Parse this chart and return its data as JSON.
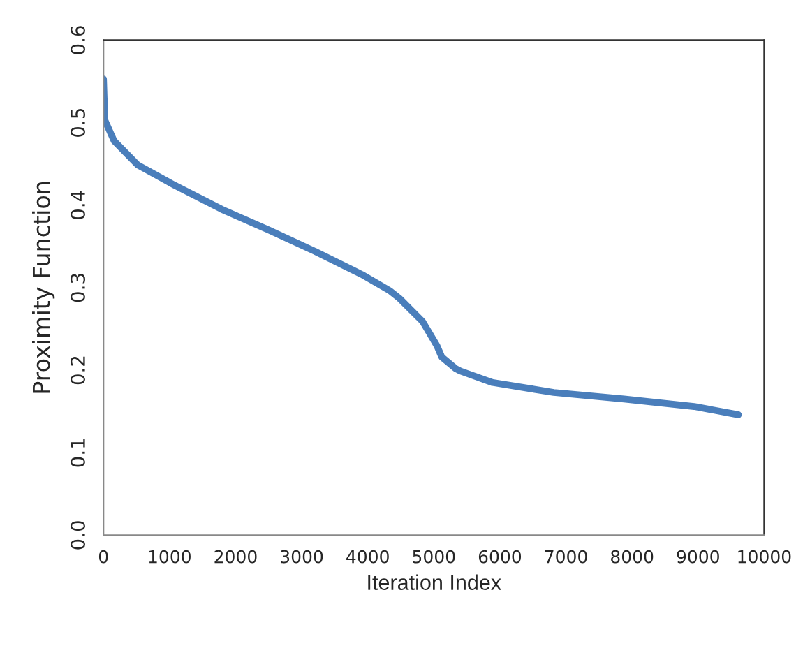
{
  "chart_data": {
    "type": "line",
    "xlabel": "Iteration Index",
    "ylabel": "Proximity Function",
    "series": [
      {
        "color": "#4a7ebb",
        "x": [
          0,
          20,
          160,
          515,
          1080,
          1790,
          2500,
          3200,
          3910,
          4340,
          4480,
          4830,
          5045,
          5120,
          5330,
          5400,
          5890,
          6815,
          7880,
          8940,
          9610
        ],
        "values": [
          0.553,
          0.503,
          0.478,
          0.449,
          0.424,
          0.395,
          0.37,
          0.344,
          0.316,
          0.296,
          0.287,
          0.259,
          0.23,
          0.216,
          0.202,
          0.199,
          0.185,
          0.173,
          0.165,
          0.156,
          0.146
        ]
      }
    ],
    "xlim": [
      0,
      10000
    ],
    "ylim": [
      0.0,
      0.6
    ],
    "xticks": [
      0,
      1000,
      2000,
      3000,
      4000,
      5000,
      6000,
      7000,
      8000,
      9000,
      10000
    ],
    "yticks": [
      {
        "value": 0.0,
        "label": "0.0"
      },
      0.1,
      0.2,
      0.3,
      0.4,
      0.5,
      0.6
    ],
    "grid": false,
    "legend": false,
    "marker": "none",
    "line_style": "solid"
  }
}
